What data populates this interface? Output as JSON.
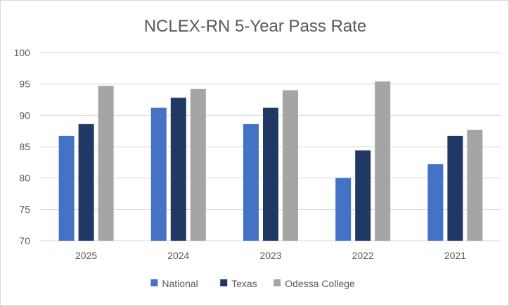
{
  "chart_data": {
    "type": "bar",
    "title": "NCLEX-RN 5-Year Pass Rate",
    "xlabel": "",
    "ylabel": "",
    "categories": [
      "2025",
      "2024",
      "2023",
      "2022",
      "2021"
    ],
    "ylim": [
      70,
      100
    ],
    "yticks": [
      70,
      75,
      80,
      85,
      90,
      95,
      100
    ],
    "grid": true,
    "legend_position": "bottom",
    "series": [
      {
        "name": "National",
        "color": "#4472C4",
        "values": [
          86.7,
          91.2,
          88.6,
          80.0,
          82.2
        ]
      },
      {
        "name": "Texas",
        "color": "#1F3864",
        "values": [
          88.6,
          92.8,
          91.2,
          84.4,
          86.7
        ]
      },
      {
        "name": "Odessa College",
        "color": "#A5A5A5",
        "values": [
          94.7,
          94.2,
          94.0,
          95.4,
          87.7
        ]
      }
    ]
  }
}
